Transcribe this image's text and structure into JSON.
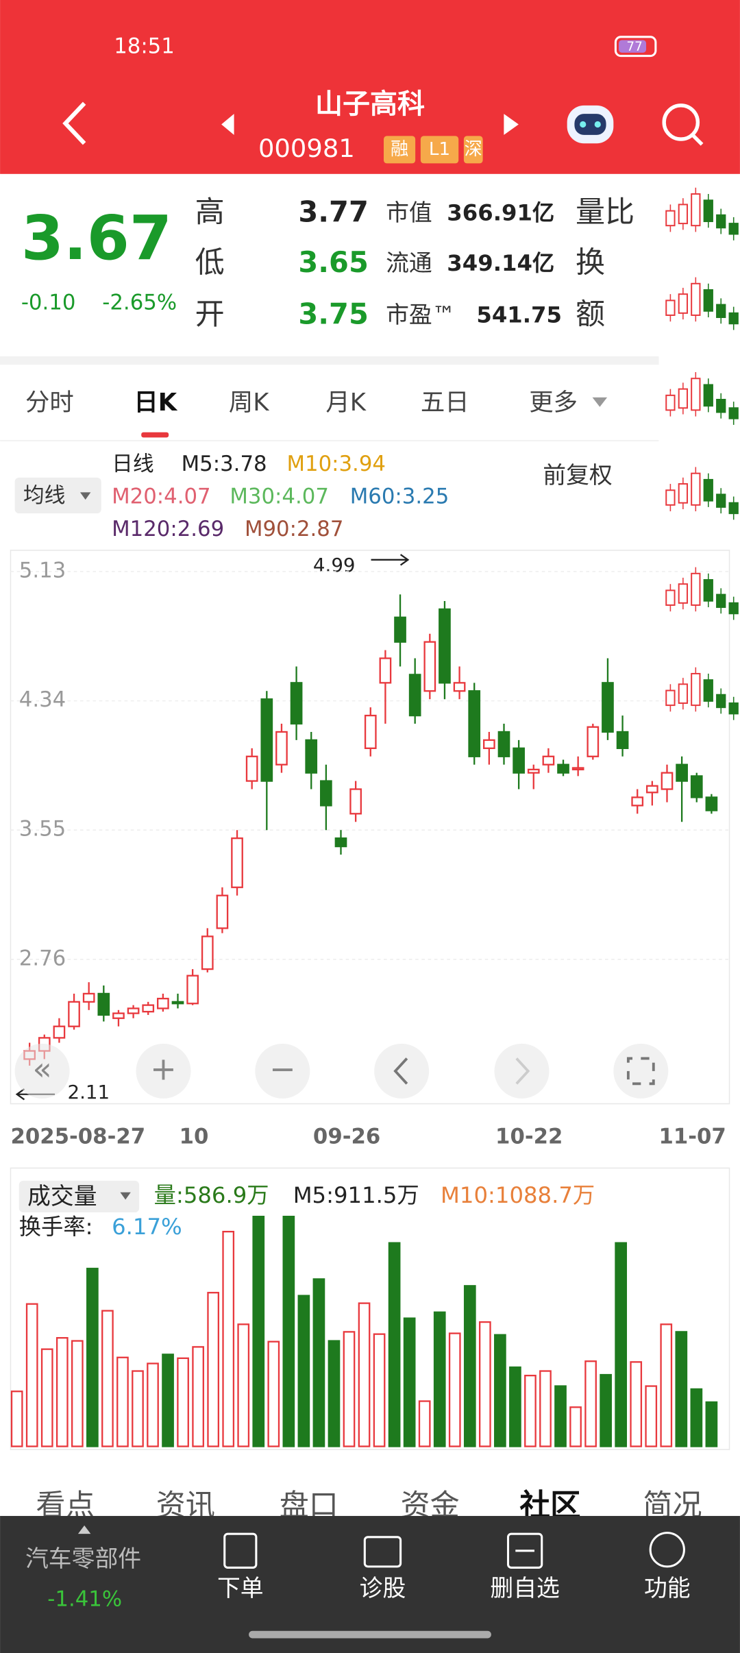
{
  "status_bar": {
    "time": "18:51",
    "battery": "77"
  },
  "header": {
    "name": "山子高科",
    "code": "000981",
    "badges": [
      "融",
      "L1",
      "深"
    ]
  },
  "quote": {
    "price": "3.67",
    "change": "-0.10",
    "pct": "-2.65%",
    "items": [
      {
        "label": "高",
        "value": "3.77"
      },
      {
        "label": "低",
        "value": "3.65"
      },
      {
        "label": "开",
        "value": "3.75"
      }
    ],
    "stats": [
      {
        "label": "市值",
        "value": "366.91亿"
      },
      {
        "label": "流通",
        "value": "349.14亿"
      },
      {
        "label": "市盈™",
        "value": "541.75"
      }
    ],
    "extra": [
      "量比",
      "换",
      "额"
    ]
  },
  "tabs": [
    "分时",
    "日K",
    "周K",
    "月K",
    "五日",
    "更多"
  ],
  "kline": {
    "ma_button": "均线",
    "adjust": "前复权",
    "legend": [
      "日线",
      "M5:3.78",
      "M10:3.94",
      "M20:4.07",
      "M30:4.07",
      "M60:3.25",
      "M120:2.69",
      "M90:2.87"
    ],
    "ylim": [
      1.89,
      5.26
    ],
    "yticks": [
      5.13,
      4.34,
      3.55,
      2.76
    ],
    "high_label": "4.99",
    "low_label": "2.11",
    "xlabels": [
      "2025-08-27",
      "10",
      "09-26",
      "10-22",
      "11-07"
    ],
    "candles": [
      [
        2.15,
        2.25,
        2.11,
        2.2
      ],
      [
        2.2,
        2.3,
        2.15,
        2.28
      ],
      [
        2.28,
        2.4,
        2.25,
        2.35
      ],
      [
        2.35,
        2.55,
        2.33,
        2.5
      ],
      [
        2.5,
        2.62,
        2.45,
        2.55
      ],
      [
        2.55,
        2.6,
        2.38,
        2.42
      ],
      [
        2.4,
        2.45,
        2.35,
        2.43
      ],
      [
        2.43,
        2.48,
        2.4,
        2.46
      ],
      [
        2.44,
        2.5,
        2.42,
        2.48
      ],
      [
        2.46,
        2.55,
        2.44,
        2.52
      ],
      [
        2.5,
        2.55,
        2.46,
        2.49
      ],
      [
        2.49,
        2.7,
        2.48,
        2.66
      ],
      [
        2.7,
        2.95,
        2.68,
        2.9
      ],
      [
        2.95,
        3.2,
        2.92,
        3.15
      ],
      [
        3.2,
        3.55,
        3.15,
        3.5
      ],
      [
        3.85,
        4.05,
        3.8,
        4.0
      ],
      [
        4.35,
        4.4,
        3.55,
        3.85
      ],
      [
        3.95,
        4.2,
        3.9,
        4.15
      ],
      [
        4.45,
        4.55,
        4.1,
        4.2
      ],
      [
        4.1,
        4.15,
        3.8,
        3.9
      ],
      [
        3.85,
        3.95,
        3.55,
        3.7
      ],
      [
        3.5,
        3.55,
        3.4,
        3.45
      ],
      [
        3.65,
        3.85,
        3.6,
        3.8
      ],
      [
        4.05,
        4.3,
        4.0,
        4.25
      ],
      [
        4.45,
        4.65,
        4.2,
        4.6
      ],
      [
        4.85,
        4.99,
        4.55,
        4.7
      ],
      [
        4.5,
        4.6,
        4.2,
        4.25
      ],
      [
        4.4,
        4.75,
        4.35,
        4.7
      ],
      [
        4.9,
        4.95,
        4.35,
        4.45
      ],
      [
        4.4,
        4.55,
        4.35,
        4.45
      ],
      [
        4.4,
        4.45,
        3.95,
        4.0
      ],
      [
        4.05,
        4.15,
        3.95,
        4.1
      ],
      [
        4.15,
        4.2,
        3.95,
        4.0
      ],
      [
        4.05,
        4.1,
        3.8,
        3.9
      ],
      [
        3.9,
        3.95,
        3.8,
        3.92
      ],
      [
        3.95,
        4.05,
        3.9,
        4.0
      ],
      [
        3.95,
        3.98,
        3.88,
        3.9
      ],
      [
        3.92,
        4.0,
        3.88,
        3.93
      ],
      [
        4.0,
        4.2,
        3.98,
        4.18
      ],
      [
        4.45,
        4.6,
        4.1,
        4.15
      ],
      [
        4.15,
        4.25,
        4.0,
        4.05
      ],
      [
        3.7,
        3.8,
        3.65,
        3.75
      ],
      [
        3.78,
        3.85,
        3.7,
        3.82
      ],
      [
        3.8,
        3.95,
        3.72,
        3.9
      ],
      [
        3.95,
        4.0,
        3.6,
        3.85
      ],
      [
        3.88,
        3.9,
        3.72,
        3.75
      ],
      [
        3.75,
        3.77,
        3.65,
        3.67
      ]
    ]
  },
  "volume": {
    "button": "成交量",
    "labels": [
      "量:586.9万",
      "M5:911.5万",
      "M10:1088.7万"
    ],
    "turnover_label": "换手率:",
    "turnover": "6.17%",
    "values": [
      730,
      1890,
      1290,
      1440,
      1400,
      2360,
      1800,
      1180,
      1000,
      1100,
      1220,
      1170,
      1320,
      2040,
      2850,
      1620,
      3050,
      1390,
      3050,
      2000,
      2220,
      1400,
      1520,
      1900,
      1490,
      2700,
      1700,
      600,
      1780,
      1500,
      2130,
      1650,
      1480,
      1050,
      940,
      1000,
      800,
      520,
      1130,
      950,
      2700,
      1120,
      800,
      1620,
      1520,
      760,
      586.9
    ]
  },
  "bottom_tabs": [
    "看点",
    "资讯",
    "盘口",
    "资金",
    "社区",
    "简况"
  ],
  "nav": {
    "sector": "汽车零部件",
    "sector_pct": "-1.41%",
    "items": [
      "下单",
      "诊股",
      "删自选",
      "功能"
    ]
  }
}
